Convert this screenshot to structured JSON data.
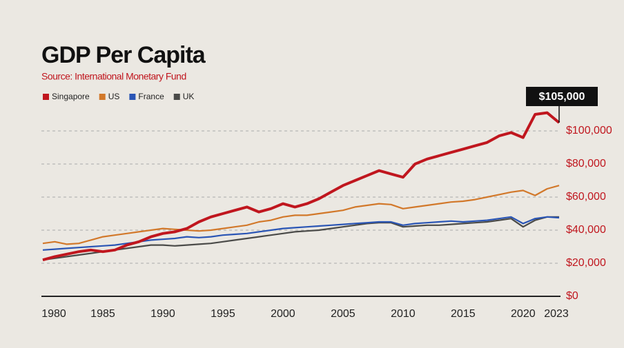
{
  "chart_data": {
    "type": "line",
    "title": "GDP Per Capita",
    "subtitle": "Source: International Monetary Fund",
    "x": [
      1980,
      1981,
      1982,
      1983,
      1984,
      1985,
      1986,
      1987,
      1988,
      1989,
      1990,
      1991,
      1992,
      1993,
      1994,
      1995,
      1996,
      1997,
      1998,
      1999,
      2000,
      2001,
      2002,
      2003,
      2004,
      2005,
      2006,
      2007,
      2008,
      2009,
      2010,
      2011,
      2012,
      2013,
      2014,
      2015,
      2016,
      2017,
      2018,
      2019,
      2020,
      2021,
      2022,
      2023
    ],
    "series": [
      {
        "name": "Singapore",
        "color": "#c0161e",
        "values": [
          22000,
          24000,
          25500,
          27000,
          28000,
          27000,
          28000,
          31000,
          33000,
          36000,
          38000,
          39000,
          41000,
          45000,
          48000,
          50000,
          52000,
          54000,
          51000,
          53000,
          56000,
          54000,
          56000,
          59000,
          63000,
          67000,
          70000,
          73000,
          76000,
          74000,
          72000,
          80000,
          83000,
          85000,
          87000,
          89000,
          91000,
          93000,
          97000,
          99000,
          96000,
          110000,
          111000,
          105000
        ]
      },
      {
        "name": "US",
        "color": "#d2782a",
        "values": [
          32000,
          33000,
          31500,
          32000,
          34000,
          36000,
          37000,
          38000,
          39000,
          40000,
          41000,
          40500,
          40000,
          39500,
          40000,
          41000,
          42000,
          43000,
          45000,
          46000,
          48000,
          49000,
          49000,
          50000,
          51000,
          52000,
          54000,
          55000,
          56000,
          55500,
          53000,
          54000,
          55000,
          56000,
          57000,
          57500,
          58500,
          60000,
          61500,
          63000,
          64000,
          61000,
          65000,
          67000
        ]
      },
      {
        "name": "France",
        "color": "#2a55b5",
        "values": [
          28000,
          28500,
          29000,
          29500,
          30000,
          30500,
          31000,
          32000,
          33000,
          34000,
          34500,
          35000,
          36000,
          35500,
          36000,
          37000,
          37500,
          38000,
          39000,
          40000,
          41000,
          41500,
          42000,
          42500,
          43000,
          43500,
          44000,
          44500,
          45000,
          45000,
          43000,
          44000,
          44500,
          45000,
          45500,
          45000,
          45500,
          46000,
          47000,
          48000,
          44000,
          47000,
          48000,
          47500
        ]
      },
      {
        "name": "UK",
        "color": "#4a4a48",
        "values": [
          22000,
          23000,
          24000,
          25000,
          26000,
          27000,
          28000,
          29000,
          30000,
          31000,
          31000,
          30500,
          31000,
          31500,
          32000,
          33000,
          34000,
          35000,
          36000,
          37000,
          38000,
          39000,
          39500,
          40000,
          41000,
          42000,
          43000,
          44000,
          44500,
          44500,
          42000,
          42500,
          43000,
          43000,
          43500,
          44000,
          44500,
          45000,
          46000,
          47000,
          42000,
          46000,
          48000,
          48000
        ]
      }
    ],
    "xlim": [
      1980,
      2023
    ],
    "xticks": [
      1980,
      1985,
      1990,
      1995,
      2000,
      2005,
      2010,
      2015,
      2020,
      2023
    ],
    "ylim": [
      0,
      110000
    ],
    "yticks": [
      {
        "value": 0,
        "label": "$0"
      },
      {
        "value": 20000,
        "label": "$20,000"
      },
      {
        "value": 40000,
        "label": "$40,000"
      },
      {
        "value": 60000,
        "label": "$60,000"
      },
      {
        "value": 80000,
        "label": "$80,000"
      },
      {
        "value": 100000,
        "label": "$100,000"
      }
    ],
    "grid": true,
    "annotation": {
      "label": "$105,000",
      "x": 2023,
      "value": 105000
    }
  }
}
